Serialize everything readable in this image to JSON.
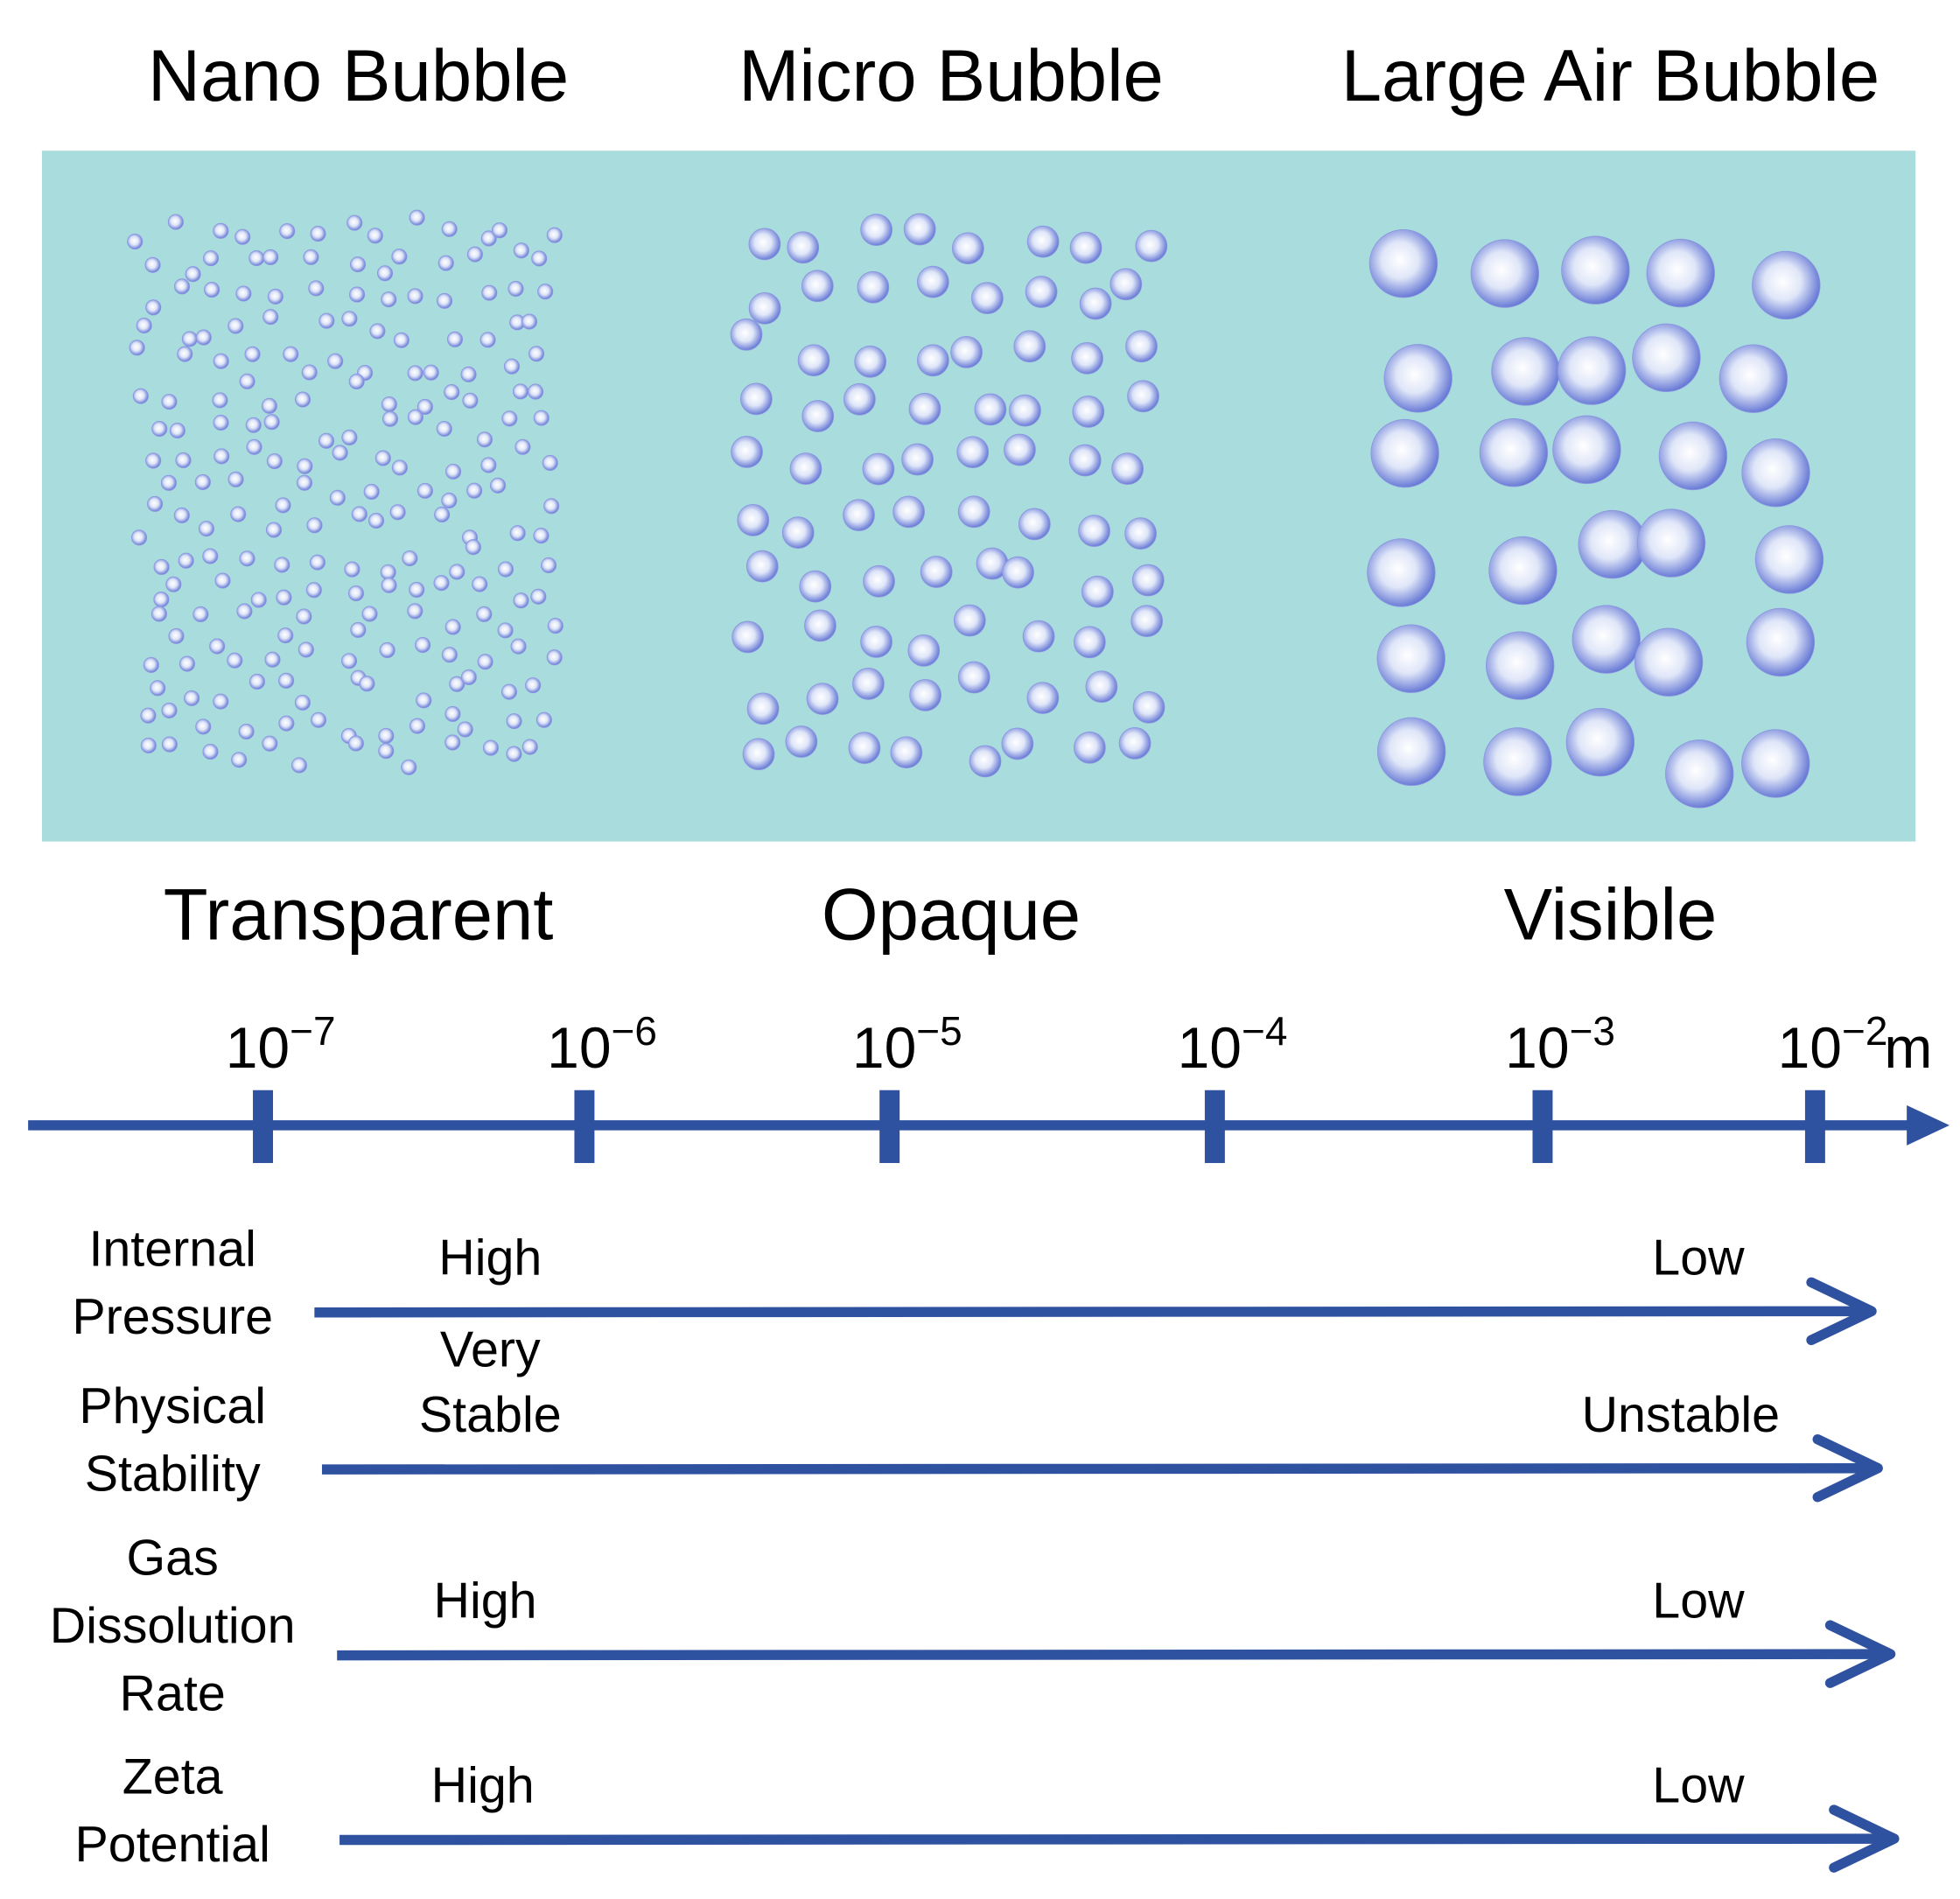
{
  "headings": [
    "Nano Bubble",
    "Micro  Bubble",
    "Large Air Bubble"
  ],
  "appearance": [
    "Transparent",
    "Opaque",
    "Visible"
  ],
  "scale": {
    "ticks": [
      {
        "base": "10",
        "exp": "−7"
      },
      {
        "base": "10",
        "exp": "−6"
      },
      {
        "base": "10",
        "exp": "−5"
      },
      {
        "base": "10",
        "exp": "−4"
      },
      {
        "base": "10",
        "exp": "−3"
      },
      {
        "base": "10",
        "exp": "−2"
      }
    ],
    "unit": "m"
  },
  "properties": [
    {
      "label": [
        "Internal",
        "Pressure"
      ],
      "start": [
        "High"
      ],
      "end": [
        "Low"
      ]
    },
    {
      "label": [
        "Physical",
        "Stability"
      ],
      "start": [
        "Very",
        "Stable"
      ],
      "end": [
        "Unstable"
      ]
    },
    {
      "label": [
        "Gas",
        "Dissolution",
        "Rate"
      ],
      "start": [
        "High"
      ],
      "end": [
        "Low"
      ]
    },
    {
      "label": [
        "Zeta",
        "Potential"
      ],
      "start": [
        "High"
      ],
      "end": [
        "Low"
      ]
    }
  ]
}
